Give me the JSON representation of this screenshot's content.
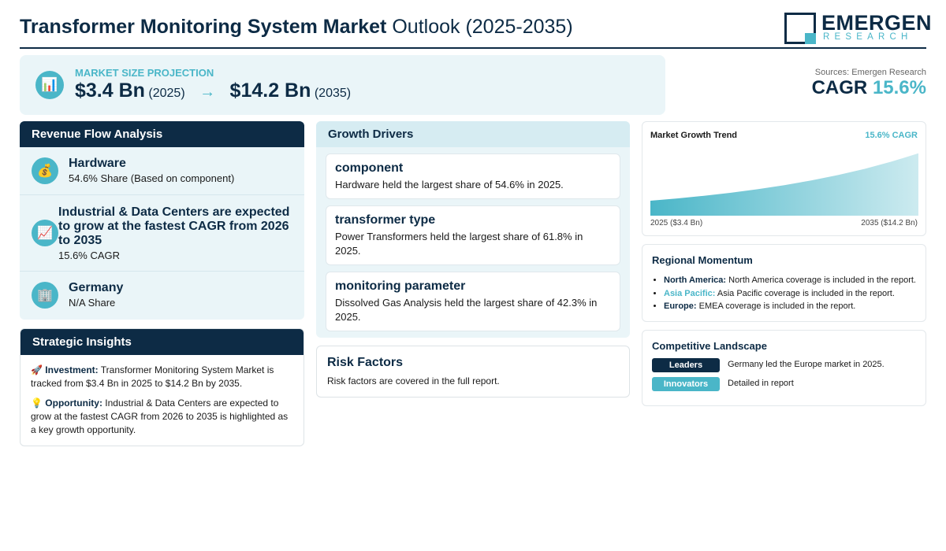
{
  "header": {
    "title_bold": "Transformer Monitoring System Market",
    "title_rest": "Outlook (2025-2035)",
    "logo_word": "EMERGEN",
    "logo_sub": "RESEARCH"
  },
  "projection": {
    "icon": "bar-chart-icon",
    "label": "MARKET SIZE PROJECTION",
    "start_value": "$3.4 Bn",
    "start_year": "(2025)",
    "arrow": "→",
    "end_value": "$14.2 Bn",
    "end_year": "(2035)"
  },
  "cagr_box": {
    "sources": "Sources: Emergen Research",
    "label": "CAGR",
    "value": "15.6%"
  },
  "revenue": {
    "title": "Revenue Flow Analysis",
    "items": [
      {
        "icon": "money-bag-icon",
        "title": "Hardware",
        "sub": "54.6% Share (Based on component)"
      },
      {
        "icon": "chart-increasing-icon",
        "title": "Industrial & Data Centers are expected to grow at the fastest CAGR from 2026 to 2035",
        "sub": "15.6% CAGR"
      },
      {
        "icon": "building-icon",
        "title": "Germany",
        "sub": "N/A Share"
      }
    ]
  },
  "insights": {
    "title": "Strategic Insights",
    "items": [
      {
        "icon": "rocket-icon",
        "label": "Investment:",
        "text": "Transformer Monitoring System Market is tracked from $3.4 Bn in 2025 to $14.2 Bn by 2035."
      },
      {
        "icon": "light-bulb-icon",
        "label": "Opportunity:",
        "text": "Industrial & Data Centers are expected to grow at the fastest CAGR from 2026 to 2035 is highlighted as a key growth opportunity."
      }
    ]
  },
  "drivers": {
    "title": "Growth Drivers",
    "items": [
      {
        "title": "component",
        "text": "Hardware held the largest share of 54.6% in 2025."
      },
      {
        "title": "transformer type",
        "text": "Power Transformers held the largest share of 61.8% in 2025."
      },
      {
        "title": "monitoring parameter",
        "text": "Dissolved Gas Analysis held the largest share of 42.3% in 2025."
      }
    ]
  },
  "risk": {
    "title": "Risk Factors",
    "text": "Risk factors are covered in the full report."
  },
  "trend": {
    "title": "Market Growth Trend",
    "cagr": "15.6% CAGR",
    "left_label": "2025 ($3.4 Bn)",
    "right_label": "2035 ($14.2 Bn)"
  },
  "chart_data": {
    "type": "area",
    "title": "Market Growth Trend",
    "x": [
      2025,
      2035
    ],
    "values": [
      3.4,
      14.2
    ],
    "unit": "$ Bn",
    "color": "#4ab6c8"
  },
  "regional": {
    "title": "Regional Momentum",
    "items": [
      {
        "name": "North America:",
        "text": "North America coverage is included in the report.",
        "color": "#0d2b45"
      },
      {
        "name": "Asia Pacific:",
        "text": "Asia Pacific coverage is included in the report.",
        "color": "#4ab6c8"
      },
      {
        "name": "Europe:",
        "text": "EMEA coverage is included in the report.",
        "color": "#0d2b45"
      }
    ]
  },
  "competitive": {
    "title": "Competitive Landscape",
    "rows": [
      {
        "tag": "Leaders",
        "text": "Germany led the Europe market in 2025.",
        "color": "#0d2b45"
      },
      {
        "tag": "Innovators",
        "text": "Detailed in report",
        "color": "#4ab6c8"
      }
    ]
  },
  "colors": {
    "navy": "#0d2b45",
    "teal": "#4ab6c8",
    "panel_bg": "#eaf5f8"
  }
}
